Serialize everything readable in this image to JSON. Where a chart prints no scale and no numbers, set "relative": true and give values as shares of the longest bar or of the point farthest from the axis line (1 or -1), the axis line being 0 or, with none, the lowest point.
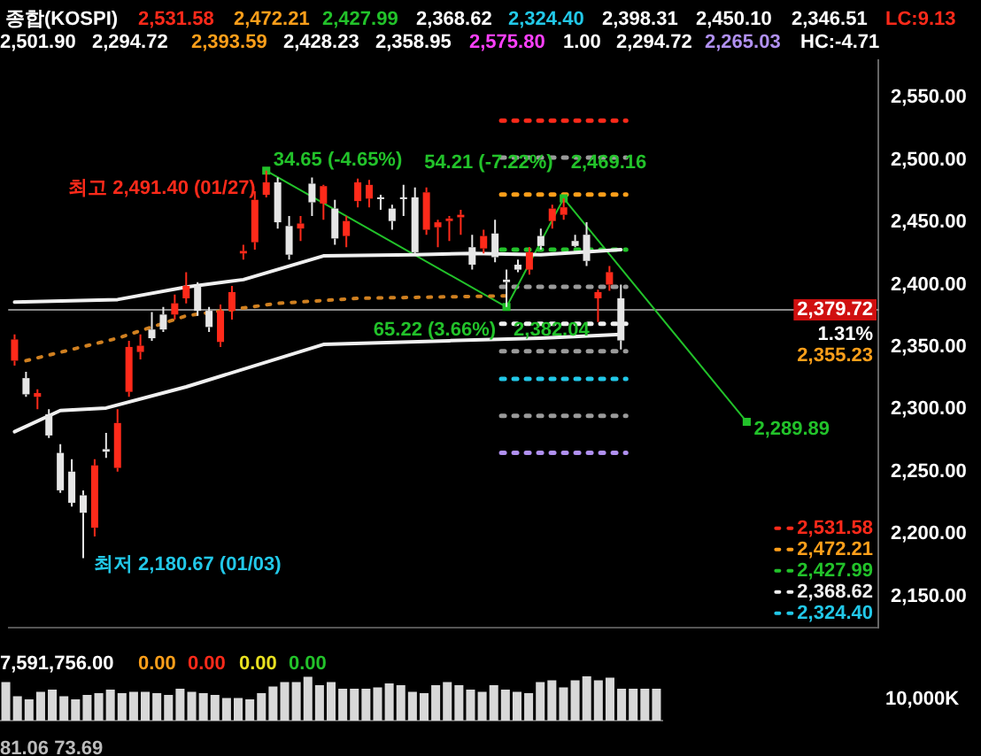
{
  "chart_data": [
    {
      "type": "candlestick",
      "title": "종합(KOSPI)",
      "categories": [
        null,
        null,
        null,
        null,
        null,
        null,
        null,
        null,
        null,
        null,
        null,
        null,
        null,
        null,
        null,
        null,
        null,
        null,
        null,
        null,
        null,
        null,
        null,
        null,
        null,
        null,
        null,
        null,
        null,
        null,
        null,
        null,
        null,
        null,
        null,
        null,
        null,
        null,
        null,
        null,
        null,
        null,
        null,
        null,
        null,
        null,
        null,
        null,
        null,
        null,
        null,
        null,
        null,
        null,
        null,
        null,
        null,
        null,
        null,
        null,
        null,
        null,
        null,
        null,
        null,
        null,
        null,
        null,
        null,
        null,
        null,
        null,
        null,
        null,
        null,
        null
      ],
      "ohlc": [
        [
          2339,
          2360,
          2335,
          2356
        ],
        [
          2325,
          2330,
          2310,
          2312
        ],
        [
          2310,
          2316,
          2300,
          2313
        ],
        [
          2296,
          2300,
          2277,
          2279
        ],
        [
          2265,
          2272,
          2233,
          2235
        ],
        [
          2250,
          2260,
          2222,
          2225
        ],
        [
          2231,
          2235,
          2180.67,
          2217
        ],
        [
          2205,
          2260,
          2198,
          2255
        ],
        [
          2268,
          2281,
          2261,
          2266
        ],
        [
          2253,
          2300,
          2250,
          2289
        ],
        [
          2314,
          2355,
          2310,
          2350
        ],
        [
          2346,
          2360,
          2340,
          2351
        ],
        [
          2364,
          2378,
          2355,
          2357
        ],
        [
          2376,
          2382,
          2362,
          2364
        ],
        [
          2376,
          2392,
          2372,
          2385
        ],
        [
          2389,
          2410,
          2385,
          2399
        ],
        [
          2399,
          2402,
          2375,
          2379
        ],
        [
          2379,
          2382,
          2362,
          2366
        ],
        [
          2354,
          2384,
          2350,
          2379
        ],
        [
          2379,
          2399,
          2372,
          2394
        ],
        [
          2425,
          2432,
          2420,
          2427
        ],
        [
          2434,
          2475,
          2428,
          2468
        ],
        [
          2472,
          2491.4,
          2470,
          2482
        ],
        [
          2482,
          2486,
          2445,
          2450
        ],
        [
          2447,
          2455,
          2420,
          2424
        ],
        [
          2445,
          2455,
          2435,
          2449
        ],
        [
          2481,
          2486,
          2455,
          2466
        ],
        [
          2465,
          2480,
          2452,
          2479
        ],
        [
          2461,
          2468,
          2432,
          2437
        ],
        [
          2439,
          2455,
          2430,
          2451
        ],
        [
          2467,
          2485,
          2462,
          2482
        ],
        [
          2469,
          2484,
          2462,
          2480
        ],
        [
          2470,
          2472,
          2460,
          2469
        ],
        [
          2461,
          2464,
          2444,
          2451
        ],
        [
          2470,
          2480,
          2455,
          2469
        ],
        [
          2470,
          2478,
          2425,
          2426
        ],
        [
          2444,
          2478,
          2440,
          2474
        ],
        [
          2446,
          2452,
          2430,
          2450
        ],
        [
          2451,
          2455,
          2435,
          2453
        ],
        [
          2454,
          2460,
          2440,
          2456
        ],
        [
          2430,
          2440,
          2412,
          2416
        ],
        [
          2429,
          2444,
          2425,
          2439
        ],
        [
          2441,
          2452,
          2418,
          2422
        ],
        [
          2404,
          2412,
          2382.04,
          2402
        ],
        [
          2416,
          2420,
          2410,
          2412
        ],
        [
          2412,
          2430,
          2408,
          2426
        ],
        [
          2439,
          2445,
          2428,
          2431
        ],
        [
          2451,
          2464,
          2445,
          2461
        ],
        [
          2456,
          2469.16,
          2452,
          2462
        ],
        [
          2435,
          2440,
          2430,
          2431
        ],
        [
          2440,
          2450,
          2415,
          2419
        ],
        [
          2389,
          2396,
          2370,
          2394
        ],
        [
          2400,
          2415,
          2395,
          2410
        ],
        [
          2389,
          2400,
          2348,
          2355.23
        ],
        null,
        null,
        null,
        null,
        null,
        null,
        null,
        null,
        null,
        null,
        null,
        null,
        null,
        null,
        null,
        null,
        null,
        null,
        null,
        null,
        null,
        null
      ],
      "colors": [
        "#ff2a1a",
        "#e6e6e6",
        "#ff2a1a",
        "#e6e6e6",
        "#e6e6e6",
        "#e6e6e6",
        "#e6e6e6",
        "#ff2a1a",
        "#e6e6e6",
        "#ff2a1a",
        "#ff2a1a",
        "#ff2a1a",
        "#e6e6e6",
        "#e6e6e6",
        "#ff2a1a",
        "#ff2a1a",
        "#e6e6e6",
        "#e6e6e6",
        "#ff2a1a",
        "#ff2a1a",
        "#ff2a1a",
        "#ff2a1a",
        "#ff2a1a",
        "#e6e6e6",
        "#e6e6e6",
        "#ff2a1a",
        "#e6e6e6",
        "#ff2a1a",
        "#e6e6e6",
        "#ff2a1a",
        "#ff2a1a",
        "#ff2a1a",
        "#e6e6e6",
        "#e6e6e6",
        "#e6e6e6",
        "#e6e6e6",
        "#ff2a1a",
        "#ff2a1a",
        "#ff2a1a",
        "#ff2a1a",
        "#e6e6e6",
        "#ff2a1a",
        "#e6e6e6",
        "#e6e6e6",
        "#e6e6e6",
        "#ff2a1a",
        "#e6e6e6",
        "#ff2a1a",
        "#ff2a1a",
        "#e6e6e6",
        "#e6e6e6",
        "#ff2a1a",
        "#ff2a1a",
        "#e6e6e6",
        null,
        null,
        null,
        null,
        null,
        null,
        null,
        null,
        null,
        null,
        null,
        null,
        null,
        null,
        null,
        null,
        null,
        null,
        null,
        null,
        null,
        null
      ],
      "series": [
        {
          "type": "line",
          "color": "#f0f0f0",
          "line_style": "solid",
          "values": [
            2386,
            null,
            null,
            null,
            null,
            null,
            null,
            null,
            null,
            2388,
            null,
            null,
            null,
            null,
            null,
            2398,
            null,
            null,
            null,
            null,
            2404,
            null,
            null,
            null,
            null,
            null,
            null,
            2423,
            null,
            null,
            null,
            null,
            null,
            null,
            null,
            2424,
            null,
            null,
            null,
            null,
            2425,
            null,
            null,
            null,
            null,
            null,
            2424,
            null,
            null,
            null,
            null,
            null,
            null,
            2428,
            null,
            null,
            null,
            null,
            null,
            null,
            null,
            null,
            null,
            null,
            null,
            null,
            null,
            null,
            null,
            null,
            null,
            null,
            null,
            null,
            null,
            null
          ]
        },
        {
          "type": "line",
          "color": "#f0f0f0",
          "line_style": "solid",
          "values": [
            2282,
            null,
            null,
            null,
            2299,
            null,
            null,
            null,
            2301,
            null,
            null,
            null,
            null,
            null,
            null,
            2318,
            null,
            null,
            null,
            null,
            null,
            null,
            null,
            null,
            null,
            null,
            null,
            2352,
            null,
            null,
            null,
            null,
            null,
            null,
            null,
            null,
            null,
            null,
            2355,
            null,
            null,
            null,
            null,
            null,
            null,
            null,
            2357,
            null,
            null,
            null,
            null,
            null,
            null,
            2360,
            null,
            null,
            null,
            null,
            null,
            null,
            null,
            null,
            null,
            null,
            null,
            null,
            null,
            null,
            null,
            null,
            null,
            null,
            null,
            null,
            null,
            null
          ]
        },
        {
          "type": "line",
          "color": "#d08020",
          "line_style": "dotted",
          "values": [
            null,
            2339,
            null,
            null,
            null,
            null,
            null,
            null,
            null,
            2357,
            null,
            null,
            null,
            null,
            null,
            2375,
            null,
            null,
            null,
            null,
            null,
            null,
            null,
            2385,
            null,
            null,
            null,
            null,
            null,
            null,
            2389,
            null,
            null,
            null,
            null,
            null,
            null,
            null,
            null,
            null,
            null,
            null,
            null,
            2391,
            null,
            null,
            null,
            null,
            null,
            null,
            null,
            null,
            null,
            null,
            null,
            null,
            null,
            null,
            null,
            null,
            null,
            null,
            null,
            null,
            null,
            null,
            null,
            null,
            null,
            null,
            null,
            null,
            null,
            null,
            null,
            null
          ]
        },
        {
          "type": "line",
          "color": "#22c22a",
          "line_style": "solid",
          "marker": "square",
          "values": [
            null,
            null,
            null,
            null,
            null,
            null,
            null,
            null,
            null,
            null,
            null,
            null,
            null,
            null,
            null,
            null,
            null,
            null,
            null,
            null,
            null,
            null,
            2491.4,
            null,
            null,
            null,
            null,
            null,
            null,
            null,
            null,
            null,
            null,
            null,
            null,
            null,
            null,
            null,
            null,
            null,
            null,
            null,
            null,
            2382.04,
            null,
            null,
            null,
            null,
            2469.16,
            null,
            null,
            null,
            null,
            null,
            null,
            null,
            null,
            null,
            null,
            null,
            null,
            null,
            null,
            null,
            2289.89,
            null,
            null,
            null,
            null,
            null,
            null,
            null,
            null,
            null,
            null,
            null
          ],
          "value_labels": [
            null,
            null,
            null,
            null,
            null,
            null,
            null,
            null,
            null,
            null,
            null,
            null,
            null,
            null,
            null,
            null,
            null,
            null,
            null,
            null,
            null,
            null,
            null,
            null,
            null,
            null,
            null,
            null,
            null,
            null,
            null,
            null,
            null,
            null,
            null,
            null,
            null,
            null,
            null,
            null,
            null,
            null,
            null,
            "2,382.04",
            null,
            null,
            null,
            null,
            "2,469.16",
            null,
            null,
            null,
            null,
            null,
            null,
            null,
            null,
            null,
            null,
            null,
            null,
            null,
            null,
            null,
            "2,289.89",
            null,
            null,
            null,
            null,
            null,
            null,
            null,
            null,
            null,
            null,
            null
          ]
        }
      ],
      "ref_lines": [
        {
          "axis": "y",
          "value": 2531.58,
          "label": "2,531.58",
          "color": "#ff2a1a",
          "line_style": "dotted"
        },
        {
          "axis": "y",
          "value": 2501.9,
          "color": "#9a9a9a",
          "line_style": "dotted"
        },
        {
          "axis": "y",
          "value": 2472.21,
          "label": "2,472.21",
          "color": "#ff9f1a",
          "line_style": "dotted"
        },
        {
          "axis": "y",
          "value": 2427.99,
          "label": "2,427.99",
          "color": "#22c22a",
          "line_style": "dotted"
        },
        {
          "axis": "y",
          "value": 2398.31,
          "color": "#9a9a9a",
          "line_style": "dotted"
        },
        {
          "axis": "y",
          "value": 2368.62,
          "label": "2,368.62",
          "color": "#f0f0f0",
          "line_style": "dotted"
        },
        {
          "axis": "y",
          "value": 2346.51,
          "color": "#9a9a9a",
          "line_style": "dotted"
        },
        {
          "axis": "y",
          "value": 2324.4,
          "label": "2,324.40",
          "color": "#22c8e8",
          "line_style": "dotted"
        },
        {
          "axis": "y",
          "value": 2294.72,
          "color": "#9a9a9a",
          "line_style": "dotted"
        },
        {
          "axis": "y",
          "value": 2265.03,
          "color": "#b090f0",
          "line_style": "dotted"
        },
        {
          "axis": "y",
          "value": 2379.72,
          "label": "2,379.72",
          "color": "#8a8a8a",
          "line_style": "solid"
        }
      ],
      "annotations": [
        "2,531.58",
        "2,472.21",
        "2,427.99",
        "2,368.62",
        "2,324.40",
        "2,398.31",
        "2,450.10",
        "2,346.51",
        "2,501.90",
        "2,294.72",
        "2,393.59",
        "2,428.23",
        "2,358.95",
        "2,575.80",
        "1.00",
        "2,294.72",
        "2,265.03",
        "LC:9.13",
        "HC:-4.71",
        "최고 2,491.40 (01/27)",
        "34.65 (-4.65%)",
        "54.21 (-7.22%)",
        "65.22 (3.66%)",
        "최저 2,180.67 (01/03)",
        "1.31%",
        "2,355.23"
      ],
      "ylim": [
        2125,
        2580
      ],
      "yticks": [
        {
          "value": 2150,
          "label": "2,150.00"
        },
        {
          "value": 2200,
          "label": "2,200.00"
        },
        {
          "value": 2250,
          "label": "2,250.00"
        },
        {
          "value": 2300,
          "label": "2,300.00"
        },
        {
          "value": 2350,
          "label": "2,350.00"
        },
        {
          "value": 2400,
          "label": "2,400.00"
        },
        {
          "value": 2450,
          "label": "2,450.00"
        },
        {
          "value": 2500,
          "label": "2,500.00"
        },
        {
          "value": 2550,
          "label": "2,550.00"
        }
      ],
      "tick_labels": "y",
      "legend": "bottom right"
    },
    {
      "type": "bar",
      "relative": true,
      "color": "#d8d8d8",
      "tick_labels": false,
      "categories": [
        null,
        null,
        null,
        null,
        null,
        null,
        null,
        null,
        null,
        null,
        null,
        null,
        null,
        null,
        null,
        null,
        null,
        null,
        null,
        null,
        null,
        null,
        null,
        null,
        null,
        null,
        null,
        null,
        null,
        null,
        null,
        null,
        null,
        null,
        null,
        null,
        null,
        null,
        null,
        null,
        null,
        null,
        null,
        null,
        null,
        null,
        null,
        null,
        null,
        null,
        null,
        null,
        null,
        null,
        null,
        null,
        null
      ],
      "values": [
        0.87,
        0.55,
        0.48,
        0.65,
        0.7,
        0.55,
        0.48,
        0.58,
        0.62,
        0.7,
        0.62,
        0.65,
        0.65,
        0.62,
        0.58,
        0.72,
        0.65,
        0.62,
        0.58,
        0.51,
        0.51,
        0.48,
        0.62,
        0.77,
        0.87,
        0.87,
        0.99,
        0.8,
        0.87,
        0.72,
        0.72,
        0.72,
        0.75,
        0.84,
        0.8,
        0.65,
        0.62,
        0.8,
        0.87,
        0.8,
        0.7,
        0.65,
        0.8,
        0.7,
        0.65,
        0.62,
        0.87,
        0.91,
        0.75,
        0.91,
        1,
        0.91,
        0.97,
        0.72,
        0.72,
        0.72,
        0.72
      ],
      "annotations": [
        "7,591,756.00",
        "0.00",
        "0.00",
        "0.00",
        "0.00",
        "10,000K",
        "81.06 73.69"
      ]
    }
  ]
}
